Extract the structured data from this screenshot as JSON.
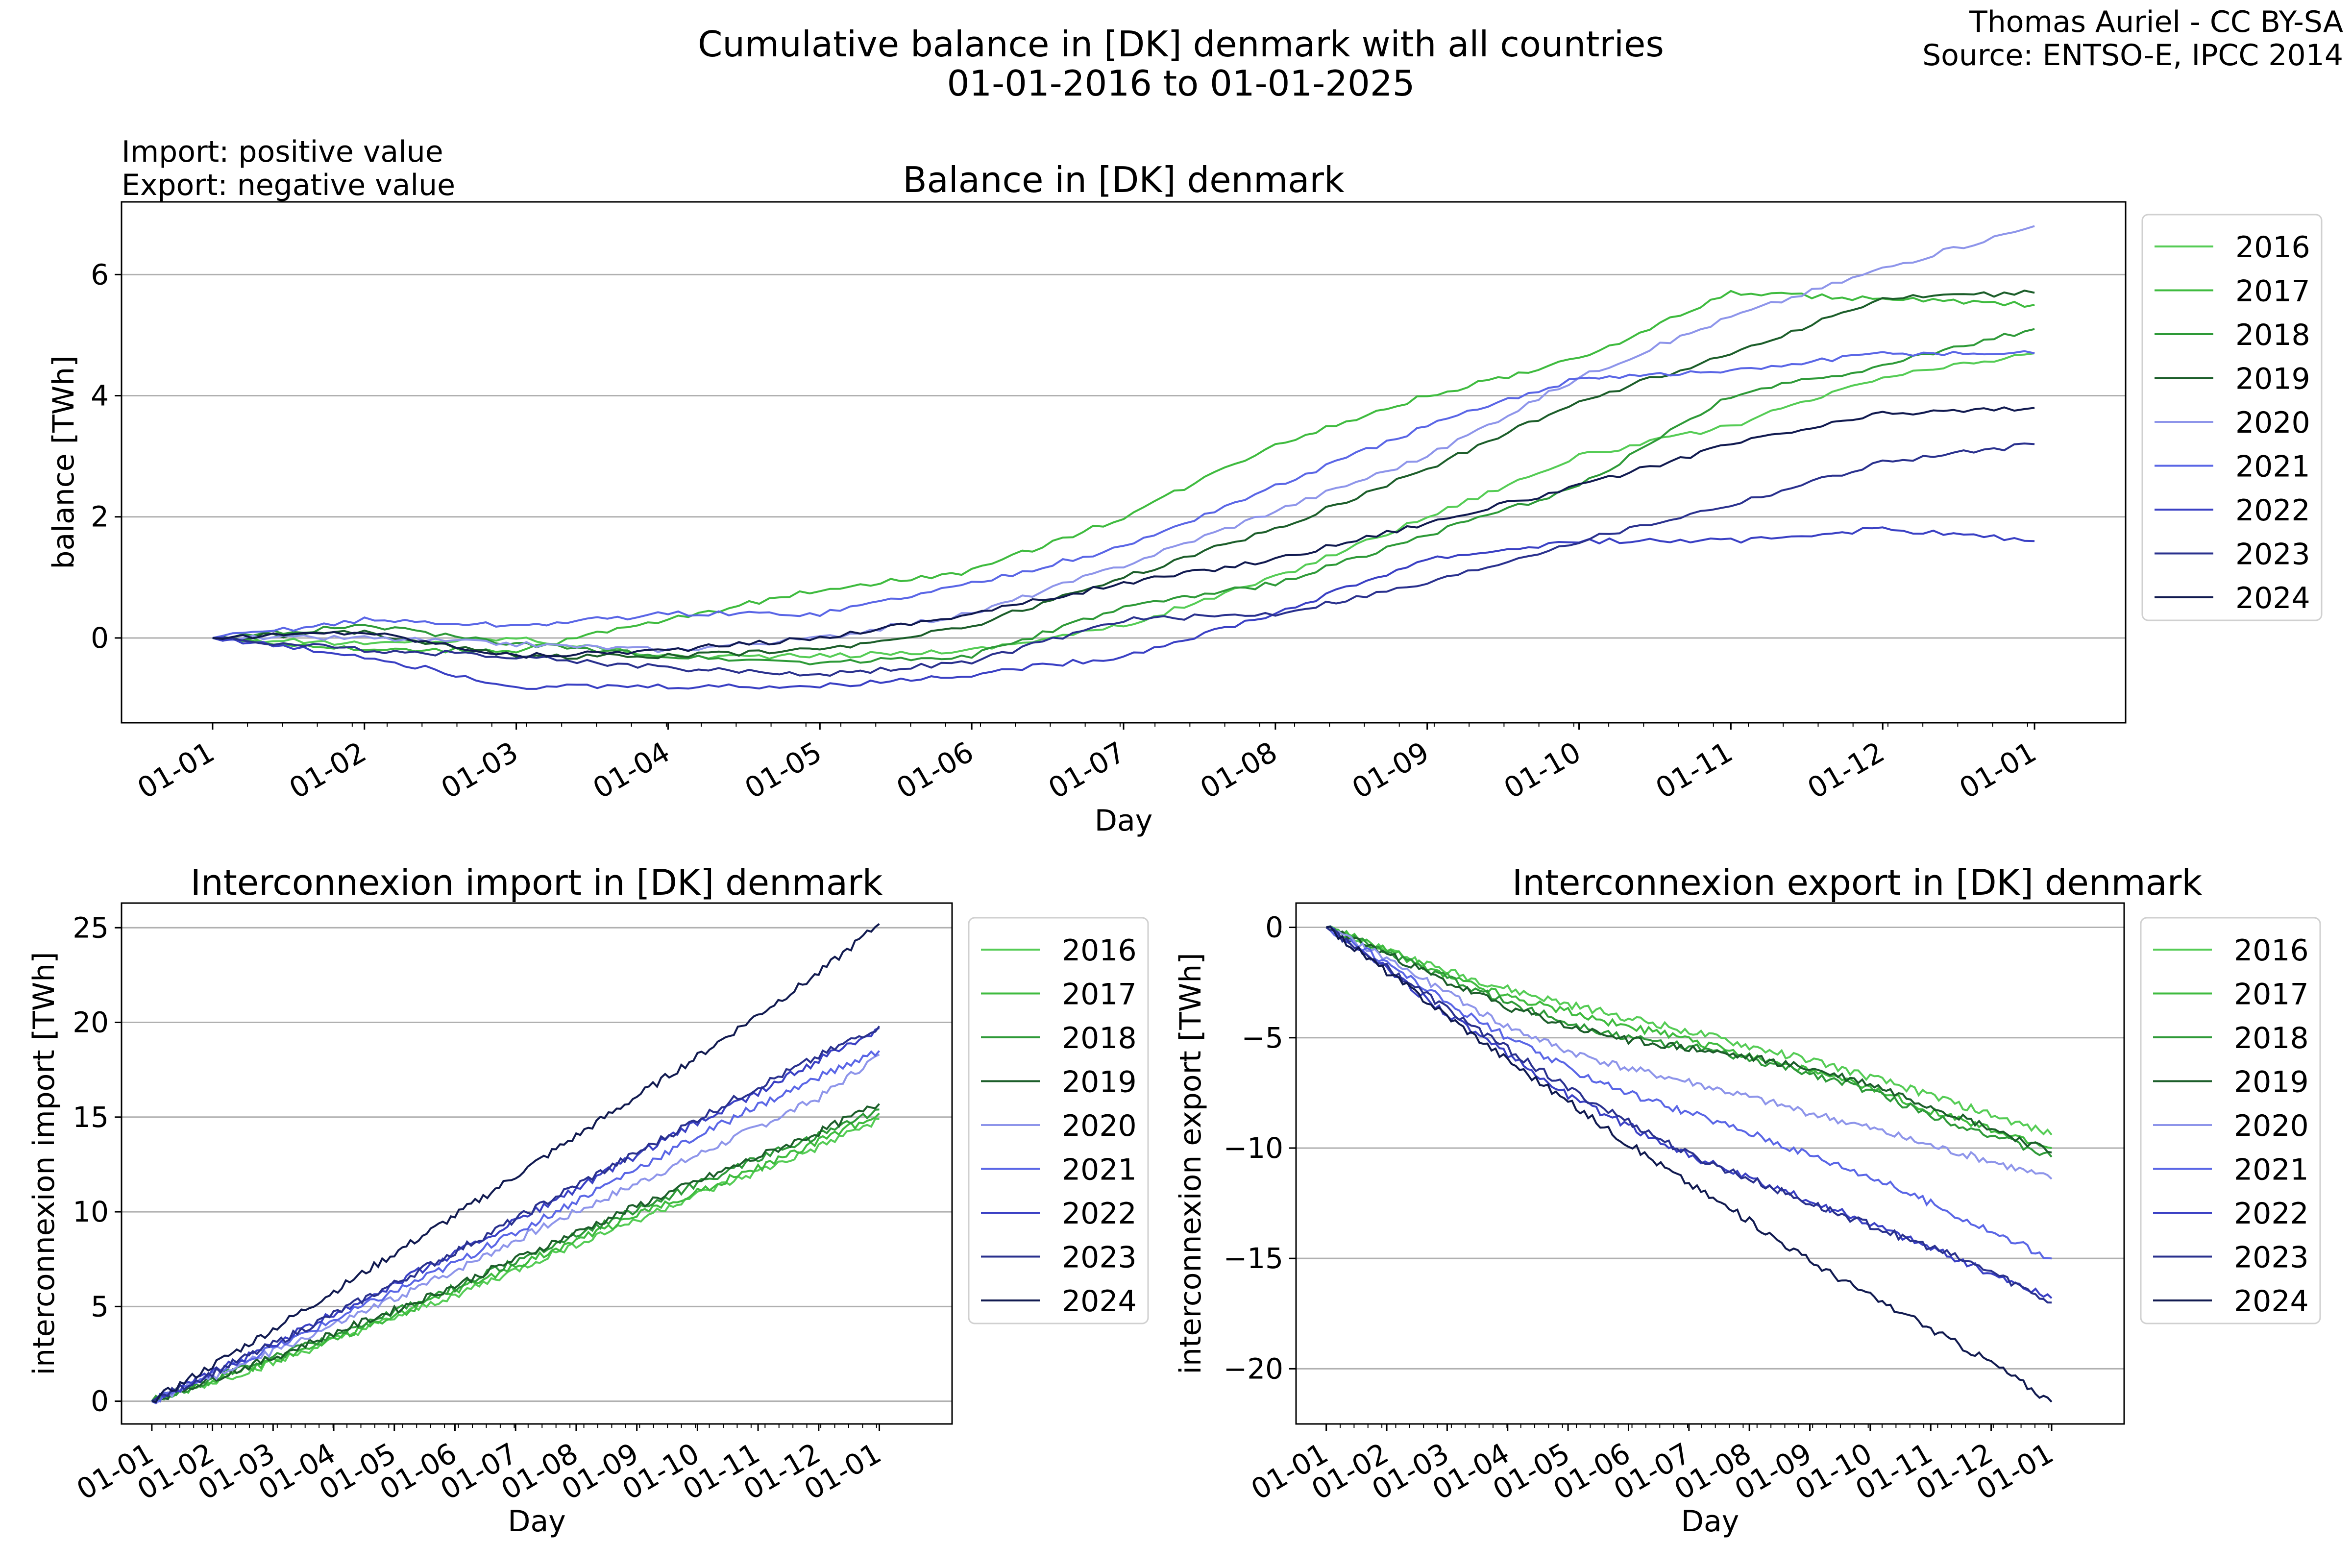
{
  "figure": {
    "title_line1": "Cumulative balance in [DK] denmark with all countries",
    "title_line2": "01-01-2016 to 01-01-2025",
    "credit_line1": "Thomas Auriel - CC BY-SA",
    "credit_line2": "Source: ENTSO-E, IPCC 2014",
    "note_line1": "Import: positive value",
    "note_line2": "Export: negative value"
  },
  "series_colors": [
    "#55cc55",
    "#3fbb3f",
    "#2e9a38",
    "#1c5e2a",
    "#8e95ea",
    "#5a66e6",
    "#3a40c4",
    "#2a318e",
    "#111a50"
  ],
  "chart_data": [
    {
      "type": "line",
      "title": "Balance in [DK] denmark",
      "xlabel": "Day",
      "ylabel": "balance [TWh]",
      "x_tick_labels": [
        "01-01",
        "01-02",
        "01-03",
        "01-04",
        "01-05",
        "01-06",
        "01-07",
        "01-08",
        "01-09",
        "01-10",
        "01-11",
        "01-12",
        "01-01"
      ],
      "x_unit": "month of year",
      "xlim": [
        -0.6,
        12.6
      ],
      "ylim": [
        -1.4,
        7.2
      ],
      "yticks": [
        0,
        2,
        4,
        6
      ],
      "grid": "horizontal",
      "legend_position": "right, outside plot",
      "months": [
        0,
        1,
        2,
        3,
        4,
        5,
        6,
        7,
        8,
        9,
        10,
        11,
        12
      ],
      "series": [
        {
          "name": "2016",
          "values": [
            0.0,
            -0.1,
            0.0,
            -0.3,
            -0.3,
            -0.2,
            0.2,
            1.0,
            2.0,
            3.0,
            3.5,
            4.3,
            4.7
          ]
        },
        {
          "name": "2017",
          "values": [
            0.0,
            -0.2,
            -0.2,
            0.3,
            0.8,
            1.1,
            2.0,
            3.2,
            4.0,
            4.6,
            5.7,
            5.6,
            5.5
          ]
        },
        {
          "name": "2018",
          "values": [
            0.0,
            0.2,
            -0.1,
            -0.3,
            -0.4,
            -0.3,
            0.5,
            0.9,
            1.7,
            2.5,
            4.0,
            4.5,
            5.1
          ]
        },
        {
          "name": "2019",
          "values": [
            0.0,
            0.1,
            -0.3,
            -0.3,
            -0.2,
            0.2,
            1.0,
            1.8,
            2.8,
            3.9,
            4.7,
            5.6,
            5.7
          ]
        },
        {
          "name": "2020",
          "values": [
            0.0,
            0.0,
            -0.1,
            -0.2,
            0.0,
            0.4,
            1.2,
            2.1,
            3.0,
            4.3,
            5.3,
            6.1,
            6.8
          ]
        },
        {
          "name": "2021",
          "values": [
            0.0,
            0.3,
            0.2,
            0.4,
            0.4,
            0.9,
            1.5,
            2.5,
            3.5,
            4.3,
            4.4,
            4.7,
            4.7
          ]
        },
        {
          "name": "2022",
          "values": [
            0.0,
            -0.3,
            -0.8,
            -0.8,
            -0.8,
            -0.6,
            -0.3,
            0.4,
            1.3,
            1.6,
            1.6,
            1.8,
            1.6
          ]
        },
        {
          "name": "2023",
          "values": [
            0.0,
            -0.2,
            -0.3,
            -0.5,
            -0.6,
            -0.4,
            0.3,
            0.4,
            0.9,
            1.6,
            2.2,
            2.9,
            3.2
          ]
        },
        {
          "name": "2024",
          "values": [
            0.0,
            0.1,
            -0.3,
            -0.2,
            0.0,
            0.4,
            0.9,
            1.3,
            1.9,
            2.5,
            3.2,
            3.7,
            3.8
          ]
        }
      ]
    },
    {
      "type": "line",
      "title": "Interconnexion import in [DK] denmark",
      "xlabel": "Day",
      "ylabel": "interconnexion import [TWh]",
      "x_tick_labels": [
        "01-01",
        "01-02",
        "01-03",
        "01-04",
        "01-05",
        "01-06",
        "01-07",
        "01-08",
        "01-09",
        "01-10",
        "01-11",
        "01-12",
        "01-01"
      ],
      "x_unit": "month of year",
      "xlim": [
        -0.5,
        13.2
      ],
      "ylim": [
        -1.2,
        26.3
      ],
      "yticks": [
        0,
        5,
        10,
        15,
        20,
        25
      ],
      "grid": "horizontal",
      "legend_position": "right, outside plot",
      "months": [
        0,
        1,
        2,
        3,
        4,
        5,
        6,
        7,
        8,
        9,
        10,
        11,
        12
      ],
      "series": [
        {
          "name": "2016",
          "values": [
            0,
            1.0,
            2.0,
            3.2,
            4.4,
            5.6,
            6.9,
            8.3,
            9.6,
            10.9,
            12.1,
            13.4,
            14.9
          ]
        },
        {
          "name": "2017",
          "values": [
            0,
            1.1,
            2.1,
            3.3,
            4.5,
            5.8,
            7.1,
            8.5,
            9.8,
            11.1,
            12.3,
            13.7,
            15.2
          ]
        },
        {
          "name": "2018",
          "values": [
            0,
            1.2,
            2.3,
            3.5,
            4.7,
            6.0,
            7.4,
            8.8,
            10.1,
            11.5,
            12.8,
            14.0,
            15.4
          ]
        },
        {
          "name": "2019",
          "values": [
            0,
            1.2,
            2.3,
            3.6,
            4.8,
            6.1,
            7.5,
            8.9,
            10.3,
            11.6,
            12.9,
            14.2,
            15.7
          ]
        },
        {
          "name": "2020",
          "values": [
            0,
            1.3,
            2.6,
            4.0,
            5.4,
            6.9,
            8.5,
            10.0,
            11.5,
            13.0,
            14.5,
            16.0,
            18.3
          ]
        },
        {
          "name": "2021",
          "values": [
            0,
            1.4,
            2.8,
            4.3,
            5.8,
            7.3,
            8.9,
            10.6,
            12.3,
            14.0,
            15.6,
            17.1,
            18.5
          ]
        },
        {
          "name": "2022",
          "values": [
            0,
            1.5,
            3.0,
            4.6,
            6.2,
            7.8,
            9.5,
            11.2,
            13.0,
            14.7,
            16.3,
            18.0,
            19.7
          ]
        },
        {
          "name": "2023",
          "values": [
            0,
            1.5,
            3.0,
            4.6,
            6.2,
            7.9,
            9.6,
            11.4,
            13.1,
            14.9,
            16.6,
            18.2,
            19.8
          ]
        },
        {
          "name": "2024",
          "values": [
            0,
            1.9,
            3.8,
            5.8,
            7.8,
            9.8,
            11.9,
            14.0,
            16.1,
            18.2,
            20.4,
            22.6,
            25.2
          ]
        }
      ]
    },
    {
      "type": "line",
      "title": "Interconnexion export in [DK] denmark",
      "xlabel": "Day",
      "ylabel": "interconnexion export [TWh]",
      "x_tick_labels": [
        "01-01",
        "01-02",
        "01-03",
        "01-04",
        "01-05",
        "01-06",
        "01-07",
        "01-08",
        "01-09",
        "01-10",
        "01-11",
        "01-12",
        "01-01"
      ],
      "x_unit": "month of year",
      "xlim": [
        -0.5,
        13.2
      ],
      "ylim": [
        -22.5,
        1.1
      ],
      "yticks": [
        0,
        -5,
        -10,
        -15,
        -20
      ],
      "grid": "horizontal",
      "legend_position": "right, outside plot",
      "months": [
        0,
        1,
        2,
        3,
        4,
        5,
        6,
        7,
        8,
        9,
        10,
        11,
        12
      ],
      "series": [
        {
          "name": "2016",
          "values": [
            0,
            -1.0,
            -2.0,
            -2.8,
            -3.5,
            -4.1,
            -4.7,
            -5.4,
            -6.0,
            -6.8,
            -7.6,
            -8.5,
            -9.4
          ]
        },
        {
          "name": "2017",
          "values": [
            0,
            -1.0,
            -2.2,
            -3.1,
            -3.8,
            -4.5,
            -5.1,
            -5.8,
            -6.5,
            -7.3,
            -8.3,
            -9.2,
            -10.0
          ]
        },
        {
          "name": "2018",
          "values": [
            0,
            -1.1,
            -2.3,
            -3.4,
            -4.3,
            -5.0,
            -5.4,
            -6.0,
            -6.6,
            -7.4,
            -8.5,
            -9.4,
            -10.4
          ]
        },
        {
          "name": "2019",
          "values": [
            0,
            -1.2,
            -2.5,
            -3.6,
            -4.5,
            -5.1,
            -5.5,
            -5.9,
            -6.4,
            -7.1,
            -8.1,
            -9.1,
            -10.2
          ]
        },
        {
          "name": "2020",
          "values": [
            0,
            -1.4,
            -3.0,
            -4.5,
            -5.6,
            -6.4,
            -7.0,
            -7.7,
            -8.4,
            -9.1,
            -9.9,
            -10.6,
            -11.4
          ]
        },
        {
          "name": "2021",
          "values": [
            0,
            -1.6,
            -3.4,
            -5.0,
            -6.4,
            -7.5,
            -8.4,
            -9.3,
            -10.3,
            -11.3,
            -12.5,
            -13.8,
            -15.0
          ]
        },
        {
          "name": "2022",
          "values": [
            0,
            -1.9,
            -3.9,
            -5.8,
            -7.6,
            -9.0,
            -10.3,
            -11.4,
            -12.4,
            -13.4,
            -14.5,
            -15.7,
            -16.8
          ]
        },
        {
          "name": "2023",
          "values": [
            0,
            -1.8,
            -3.7,
            -5.5,
            -7.3,
            -8.8,
            -10.3,
            -11.4,
            -12.5,
            -13.5,
            -14.5,
            -15.6,
            -17.0
          ]
        },
        {
          "name": "2024",
          "values": [
            0,
            -2.0,
            -4.0,
            -6.0,
            -7.9,
            -9.8,
            -11.6,
            -13.3,
            -15.1,
            -16.7,
            -18.2,
            -19.7,
            -21.5
          ]
        }
      ]
    }
  ]
}
